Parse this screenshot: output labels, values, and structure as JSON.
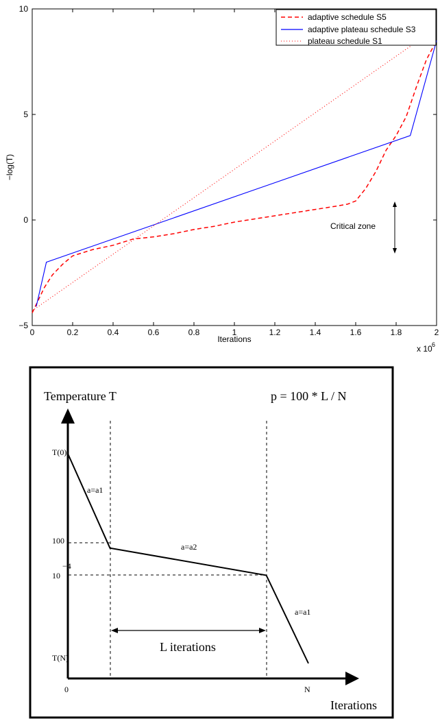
{
  "chart_data": [
    {
      "type": "line",
      "xlabel": "Iterations",
      "ylabel": "−log(T)",
      "xlim": [
        0,
        2
      ],
      "ylim": [
        -5,
        10
      ],
      "x_exponent_label": "x 10",
      "x_exponent_power": "6",
      "xticks": [
        0,
        0.2,
        0.4,
        0.6,
        0.8,
        1,
        1.2,
        1.4,
        1.6,
        1.8,
        2
      ],
      "xtick_labels": [
        "0",
        "0.2",
        "0.4",
        "0.6",
        "0.8",
        "1",
        "1.2",
        "1.4",
        "1.6",
        "1.8",
        "2"
      ],
      "yticks": [
        -5,
        0,
        5,
        10
      ],
      "ytick_labels": [
        "−5",
        "0",
        "5",
        "10"
      ],
      "legend_position": "top-right",
      "grid": false,
      "series": [
        {
          "name": "adaptive schedule S5",
          "color": "#ff0000",
          "style": "dashed",
          "x": [
            0,
            0.03,
            0.06,
            0.1,
            0.15,
            0.2,
            0.3,
            0.4,
            0.5,
            0.6,
            0.7,
            0.8,
            0.9,
            1.0,
            1.1,
            1.2,
            1.3,
            1.4,
            1.5,
            1.56,
            1.6,
            1.65,
            1.7,
            1.75,
            1.8,
            1.85,
            1.9,
            1.95,
            2.0
          ],
          "y": [
            -4.4,
            -3.8,
            -3.2,
            -2.6,
            -2.1,
            -1.7,
            -1.4,
            -1.2,
            -0.9,
            -0.8,
            -0.65,
            -0.45,
            -0.3,
            -0.1,
            0.05,
            0.2,
            0.35,
            0.5,
            0.65,
            0.75,
            0.9,
            1.5,
            2.3,
            3.3,
            4.0,
            4.9,
            6.3,
            7.6,
            8.5
          ]
        },
        {
          "name": "adaptive plateau schedule S3",
          "color": "#0000ff",
          "style": "solid",
          "x": [
            0.02,
            0.07,
            1.87,
            2.0
          ],
          "y": [
            -4.1,
            -2.0,
            4.0,
            8.5
          ]
        },
        {
          "name": "plateau schedule S1",
          "color": "#ff0000",
          "style": "dotted",
          "x": [
            0,
            2.0
          ],
          "y": [
            -4.3,
            9.1
          ]
        }
      ],
      "annotations": [
        {
          "text": "Critical zone",
          "x": 1.59,
          "y": -0.3
        }
      ],
      "arrow_annotation": {
        "x": 1.79,
        "y_from": -1.5,
        "y_to": 0.8
      }
    },
    {
      "type": "line",
      "title": "",
      "formula": "p = 100 * L / N",
      "ylabel": "Temperature T",
      "xlabel": "Iterations",
      "xtick_labels": [
        "0",
        "N"
      ],
      "ytick_labels": [
        "T(0)",
        "100",
        "10",
        "T(N)"
      ],
      "ytick_exponent": "−4",
      "segment_labels": [
        "a=a1",
        "a=a2",
        "a=a1"
      ],
      "interval_label": "L iterations",
      "grid": false,
      "series": [
        {
          "name": "",
          "color": "#000000",
          "style": "solid",
          "x": [
            0,
            0.175,
            0.825,
            1.0
          ],
          "y": [
            1.0,
            0.55,
            0.42,
            0.0
          ]
        }
      ]
    }
  ]
}
